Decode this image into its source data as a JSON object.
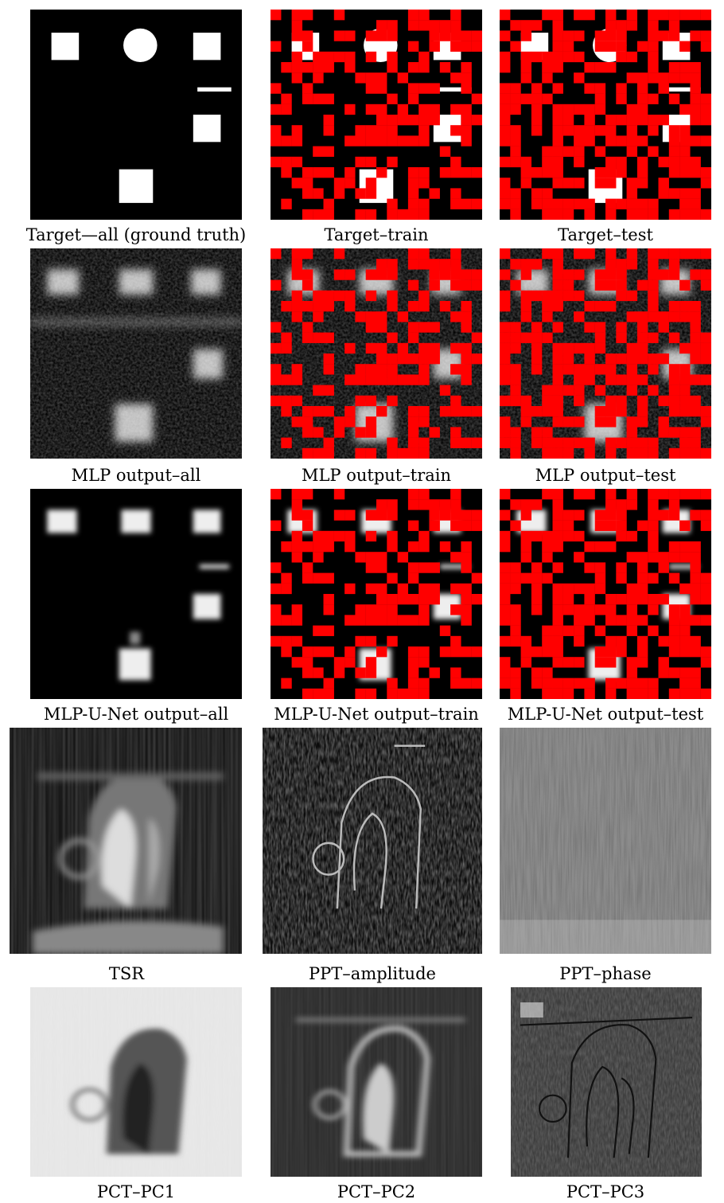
{
  "captions": {
    "target_all": "Target—all (ground truth)",
    "target_train": "Target–train",
    "target_test": "Target–test",
    "mlp_all": "MLP output–all",
    "mlp_train": "MLP output–train",
    "mlp_test": "MLP output–test",
    "unet_all": "MLP-U-Net output–all",
    "unet_train": "MLP-U-Net output–train",
    "unet_test": "MLP-U-Net output–test",
    "tsr": "TSR",
    "ppt_amp": "PPT–amplitude",
    "ppt_phase": "PPT–phase",
    "pc1": "PCT–PC1",
    "pc2": "PCT–PC2",
    "pc3": "PCT–PC3"
  },
  "colors": {
    "mask": "#ff0000",
    "background": "#000000",
    "defect": "#ffffff"
  },
  "mask_grid": 20
}
